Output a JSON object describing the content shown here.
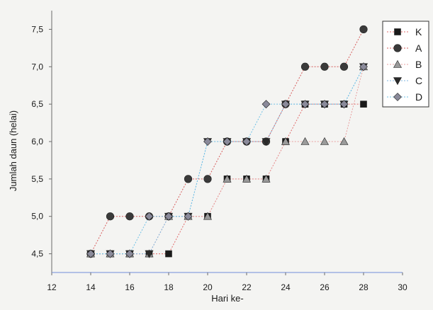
{
  "chart_data": {
    "type": "line",
    "xlabel": "Hari ke-",
    "ylabel": "Jumlah daun (helai)",
    "xlim": [
      12,
      30
    ],
    "ylim": [
      4.25,
      7.75
    ],
    "xticks": [
      12,
      14,
      16,
      18,
      20,
      22,
      24,
      26,
      28,
      30
    ],
    "yticks": [
      4.5,
      5.0,
      5.5,
      6.0,
      6.5,
      7.0,
      7.5
    ],
    "xtick_labels": [
      "12",
      "14",
      "16",
      "18",
      "20",
      "22",
      "24",
      "26",
      "28",
      "30"
    ],
    "ytick_labels": [
      "4,5",
      "5,0",
      "5,5",
      "6,0",
      "6,5",
      "7,0",
      "7,5"
    ],
    "grid": false,
    "legend_position": "top-right",
    "x": [
      14,
      15,
      16,
      17,
      18,
      19,
      20,
      21,
      22,
      23,
      24,
      25,
      26,
      27,
      28
    ],
    "series": [
      {
        "name": "K",
        "marker": "square",
        "color": "#1a1a1a",
        "line_color": "#e06a6a",
        "values": [
          4.5,
          4.5,
          4.5,
          4.5,
          4.5,
          5.0,
          5.0,
          5.5,
          5.5,
          5.5,
          6.0,
          6.5,
          6.5,
          6.5,
          6.5
        ]
      },
      {
        "name": "A",
        "marker": "circle",
        "color": "#3a3a3a",
        "line_color": "#d65c5c",
        "values": [
          4.5,
          5.0,
          5.0,
          5.0,
          5.0,
          5.5,
          5.5,
          6.0,
          6.0,
          6.0,
          6.5,
          7.0,
          7.0,
          7.0,
          7.5
        ]
      },
      {
        "name": "B",
        "marker": "triangle-up",
        "color": "#9a9a9a",
        "line_color": "#e8a0a0",
        "values": [
          4.5,
          4.5,
          4.5,
          4.5,
          5.0,
          5.0,
          5.0,
          5.5,
          5.5,
          5.5,
          6.0,
          6.0,
          6.0,
          6.0,
          7.0
        ]
      },
      {
        "name": "C",
        "marker": "triangle-down",
        "color": "#2a2a2a",
        "line_color": "#7fb7e0",
        "values": [
          4.5,
          4.5,
          4.5,
          4.5,
          5.0,
          5.0,
          6.0,
          6.0,
          6.0,
          6.0,
          6.5,
          6.5,
          6.5,
          6.5,
          7.0
        ]
      },
      {
        "name": "D",
        "marker": "diamond",
        "color": "#8a8a9a",
        "line_color": "#6ec0e6",
        "values": [
          4.5,
          4.5,
          4.5,
          5.0,
          5.0,
          5.0,
          6.0,
          6.0,
          6.0,
          6.5,
          6.5,
          6.5,
          6.5,
          6.5,
          7.0
        ]
      }
    ]
  }
}
